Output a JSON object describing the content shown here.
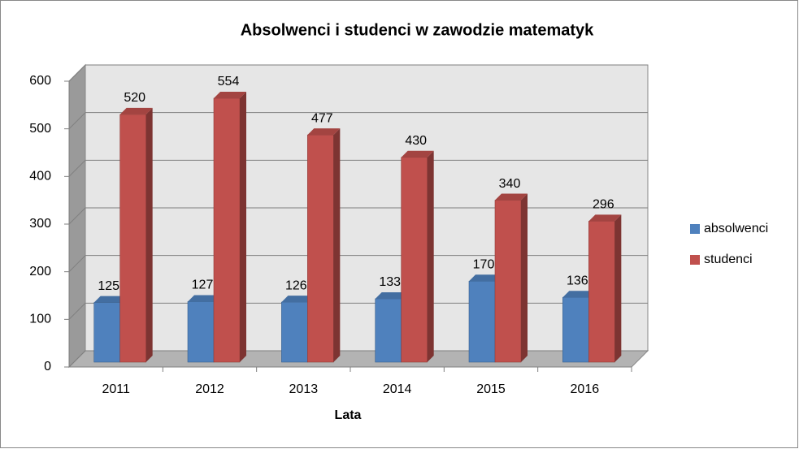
{
  "chart_data": {
    "type": "bar3d",
    "title": "Absolwenci i studenci w zawodzie matematyk",
    "x_label": "Lata",
    "categories": [
      "2011",
      "2012",
      "2013",
      "2014",
      "2015",
      "2016"
    ],
    "series": [
      {
        "name": "absolwenci",
        "color": "#4f81bd",
        "values": [
          125,
          127,
          126,
          133,
          170,
          136
        ]
      },
      {
        "name": "studenci",
        "color": "#c0504d",
        "values": [
          520,
          554,
          477,
          430,
          340,
          296
        ]
      }
    ],
    "ylim": [
      0,
      600
    ],
    "yticks": [
      0,
      100,
      200,
      300,
      400,
      500,
      600
    ],
    "grid": true,
    "legend": "right"
  }
}
